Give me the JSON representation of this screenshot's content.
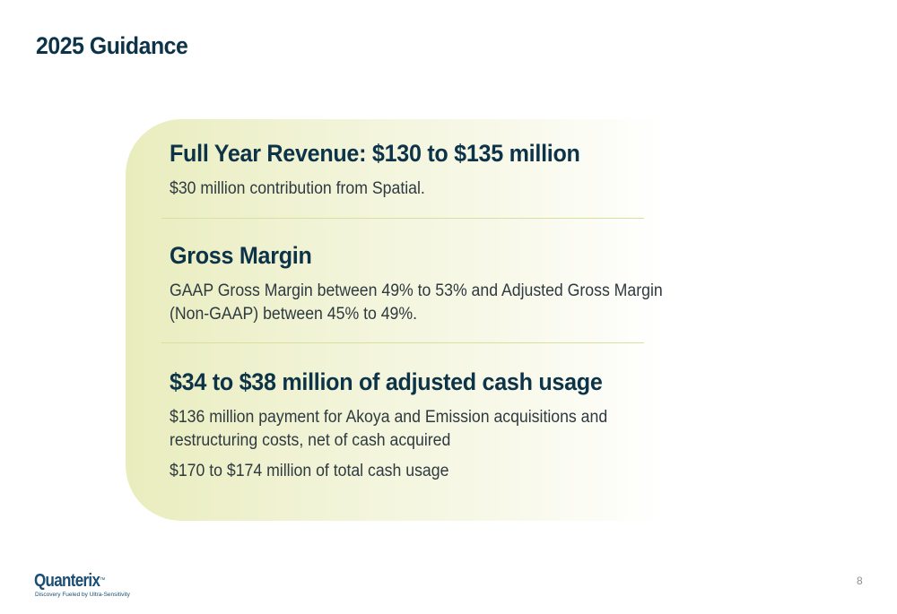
{
  "slide": {
    "title": "2025 Guidance",
    "page_number": "8"
  },
  "sections": [
    {
      "heading": "Full Year Revenue: $130 to $135 million",
      "lines": [
        "$30 million contribution from Spatial."
      ]
    },
    {
      "heading": "Gross Margin",
      "lines": [
        "GAAP Gross Margin between 49% to 53% and Adjusted Gross Margin",
        "(Non-GAAP) between 45% to 49%."
      ]
    },
    {
      "heading": "$34 to $38 million of adjusted cash usage",
      "lines": [
        "$136 million payment for Akoya and Emission acquisitions and",
        "restructuring costs, net of cash acquired"
      ],
      "extra_line": "$170 to $174 million of total cash usage"
    }
  ],
  "logo": {
    "name": "Quanterix",
    "trademark": "™",
    "tagline": "Discovery Fueled by Ultra-Sensitivity"
  },
  "colors": {
    "title": "#0d3348",
    "panel_start": "#e9edbd",
    "panel_end": "#ffffff",
    "logo": "#1a4e74"
  }
}
